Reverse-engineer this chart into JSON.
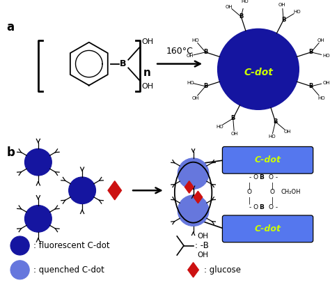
{
  "bg_color": "#ffffff",
  "cdot_blue_dark": "#1515a0",
  "cdot_blue_light": "#6677dd",
  "cdot_green_label": "#ccff00",
  "cdot_panel_blue": "#5577ee",
  "red_diamond": "#cc1111",
  "black": "#000000",
  "arrow_160_text": "160°C",
  "cdot_label": "C-dot",
  "fluorescent_text": ": fluorescent C-dot",
  "quenched_text": ": quenched C-dot",
  "glucose_text": ": glucose",
  "panel_a_label": "a",
  "panel_b_label": "b"
}
